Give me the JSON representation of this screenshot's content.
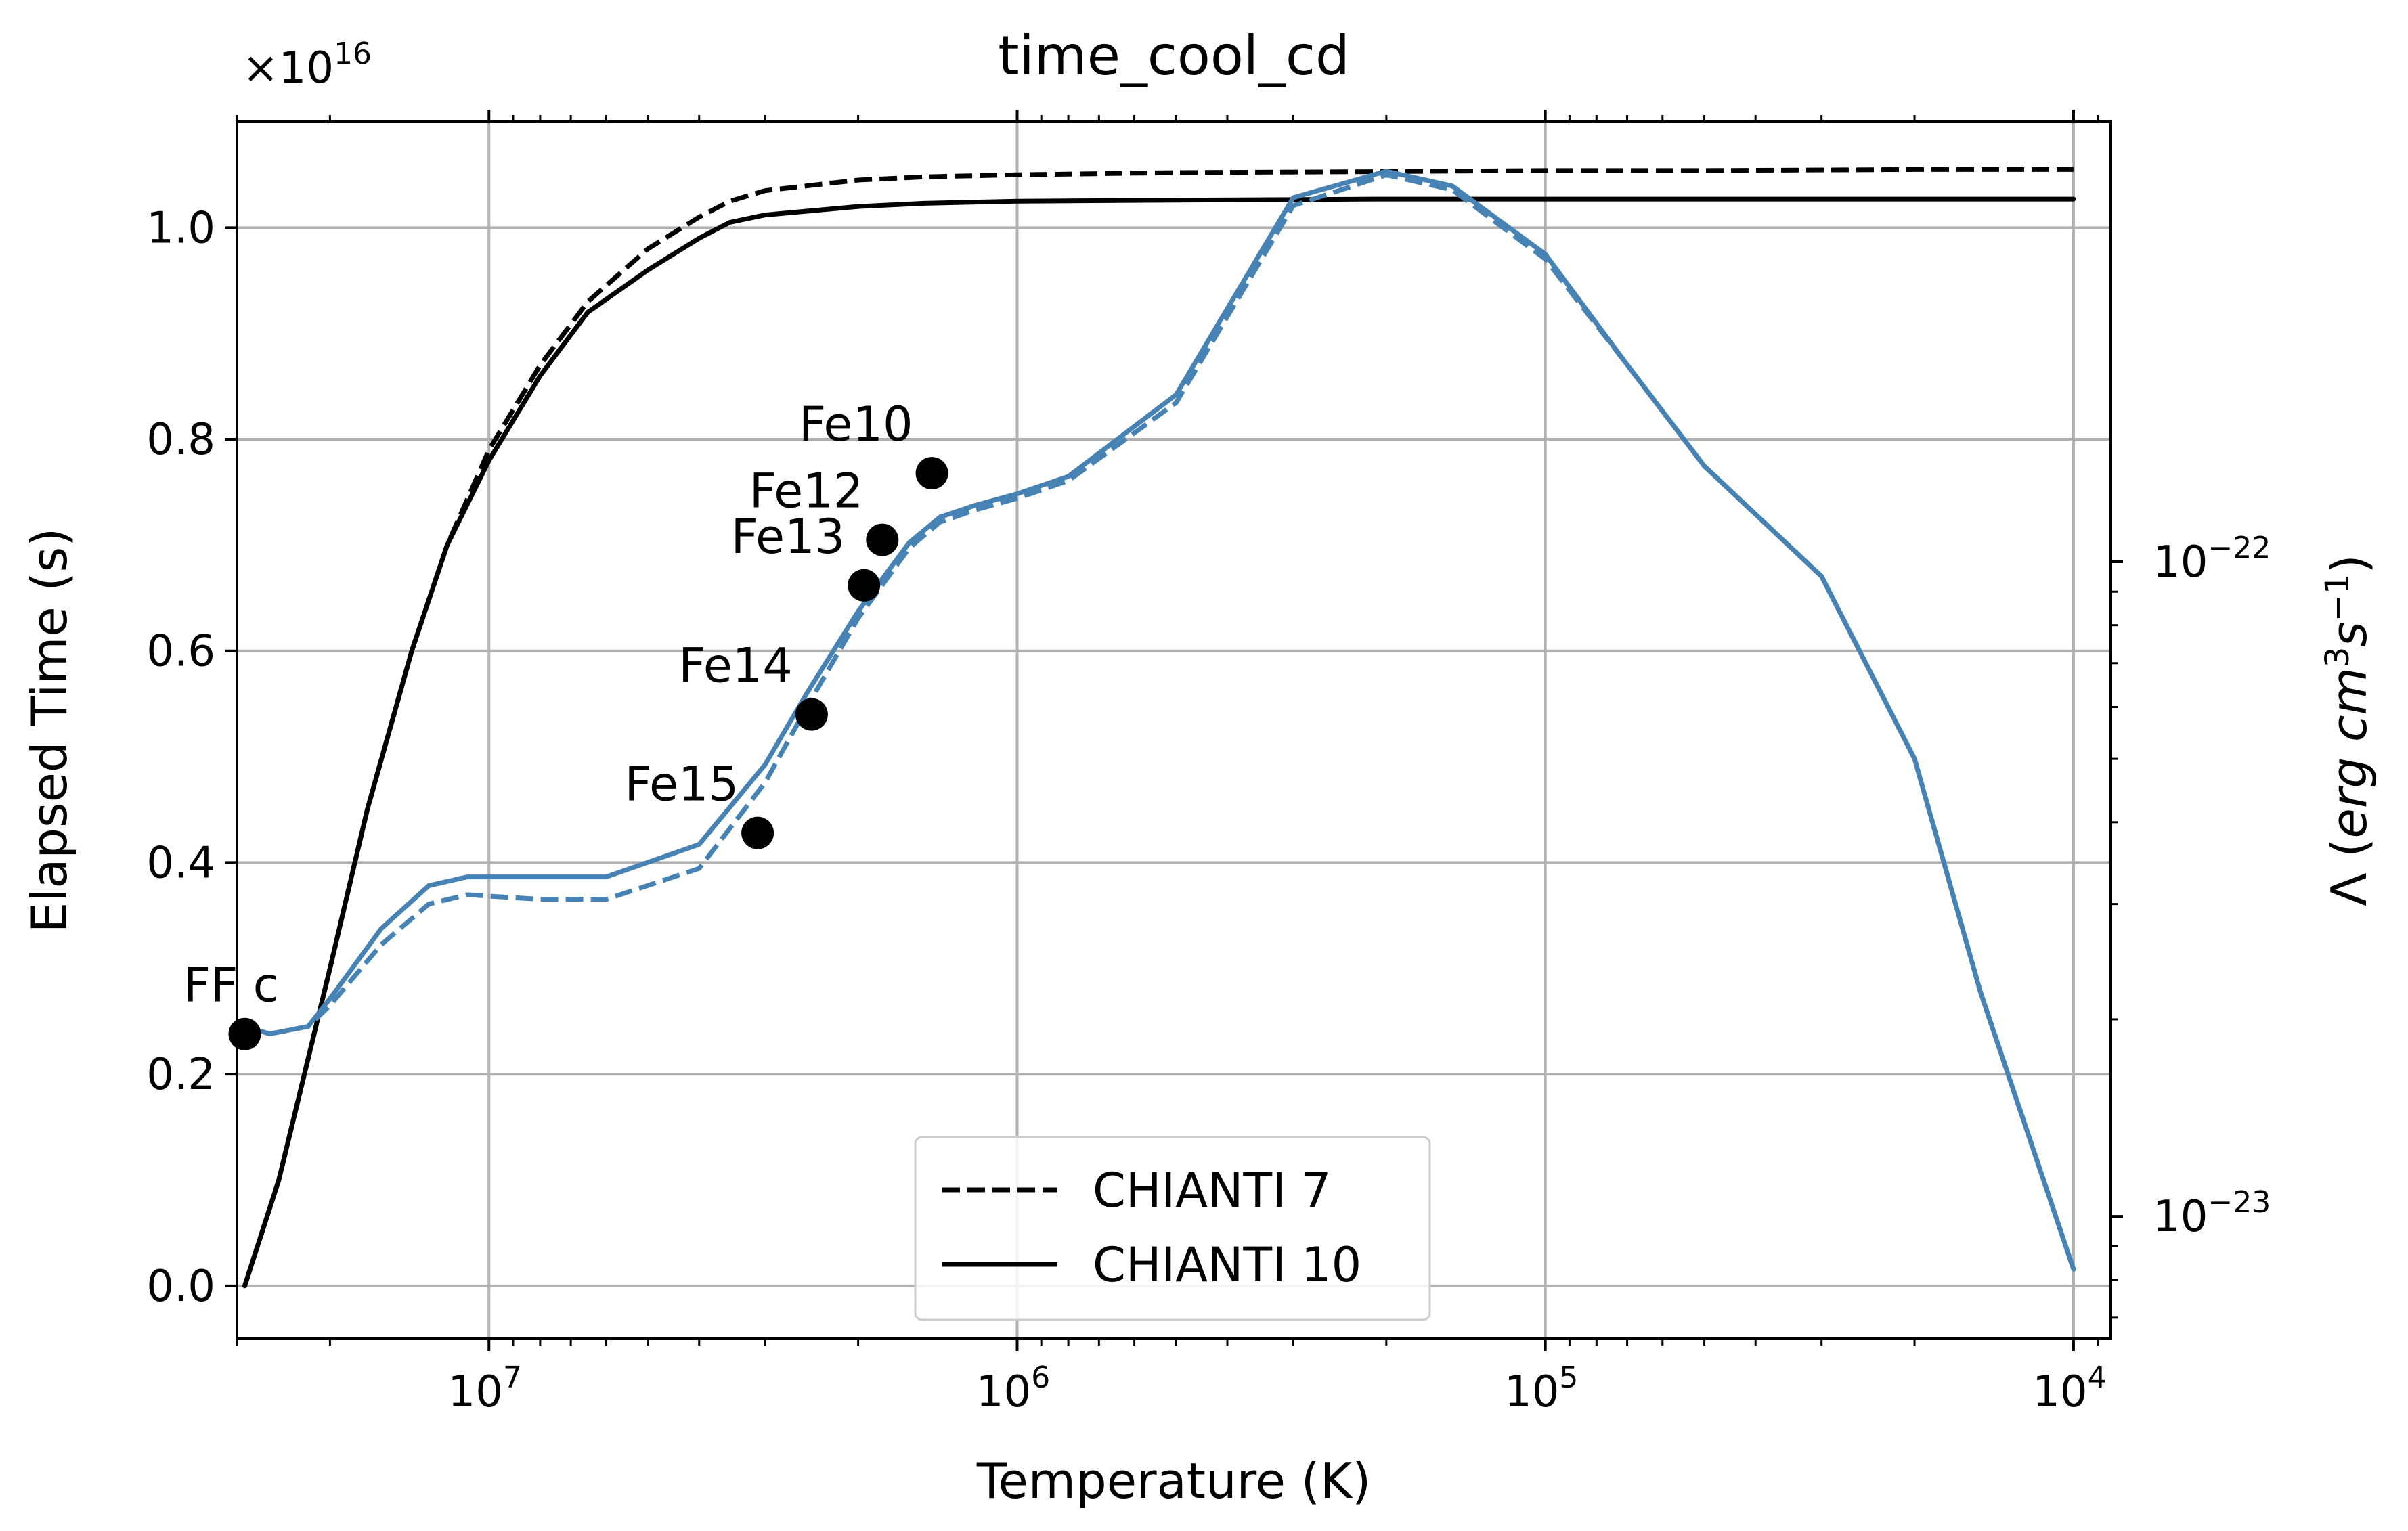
{
  "chart_data": {
    "type": "line",
    "title": "time_cool_cd",
    "xlabel": "Temperature (K)",
    "ylabel": "Elapsed Time (s)",
    "y2label": "Λ (erg cm³s⁻¹)",
    "y2label_parts": {
      "lambda": "Λ (",
      "erg": "erg",
      "cm": "cm",
      "cm_exp": "3",
      "s": "s",
      "s_exp": "−1",
      "close": ")"
    },
    "x_scale": "log",
    "x_reversed": true,
    "xlim": [
      30000000.0,
      8500.0
    ],
    "ylim": [
      -0.05,
      1.1
    ],
    "y_offset_text": {
      "base": "×10",
      "exp": "16"
    },
    "y2_scale": "log",
    "y2lim": [
      6.5e-24,
      4.7e-22
    ],
    "grid": true,
    "xticks": [
      {
        "value": 10000000.0,
        "base": "10",
        "exp": "7"
      },
      {
        "value": 1000000.0,
        "base": "10",
        "exp": "6"
      },
      {
        "value": 100000.0,
        "base": "10",
        "exp": "5"
      },
      {
        "value": 10000.0,
        "base": "10",
        "exp": "4"
      }
    ],
    "yticks": [
      {
        "value": 0.0,
        "label": "0.0"
      },
      {
        "value": 0.2,
        "label": "0.2"
      },
      {
        "value": 0.4,
        "label": "0.4"
      },
      {
        "value": 0.6,
        "label": "0.6"
      },
      {
        "value": 0.8,
        "label": "0.8"
      },
      {
        "value": 1.0,
        "label": "1.0"
      }
    ],
    "y2ticks": [
      {
        "value": 1e-22,
        "base": "10",
        "exp": "−22"
      },
      {
        "value": 1e-23,
        "base": "10",
        "exp": "−23"
      }
    ],
    "colors": {
      "elapsed": "#000000",
      "lambda": "#4682b4",
      "grid": "#b0b0b0"
    },
    "series": [
      {
        "name": "CHIANTI 7",
        "axis": "left",
        "style": "dashed",
        "color": "#000000",
        "x": [
          29000000.0,
          25000000.0,
          20000000.0,
          17000000.0,
          14000000.0,
          12000000.0,
          10000000.0,
          8000000.0,
          6500000.0,
          5000000.0,
          4000000.0,
          3500000.0,
          3000000.0,
          2000000.0,
          1500000.0,
          1000000.0,
          500000.0,
          200000.0,
          100000.0,
          50000.0,
          20000.0,
          10000.0
        ],
        "values": [
          0.0,
          0.1,
          0.3,
          0.45,
          0.6,
          0.7,
          0.79,
          0.87,
          0.93,
          0.98,
          1.01,
          1.025,
          1.035,
          1.045,
          1.048,
          1.05,
          1.052,
          1.053,
          1.054,
          1.054,
          1.055,
          1.055
        ]
      },
      {
        "name": "CHIANTI 10",
        "axis": "left",
        "style": "solid",
        "color": "#000000",
        "x": [
          29000000.0,
          25000000.0,
          20000000.0,
          17000000.0,
          14000000.0,
          12000000.0,
          10000000.0,
          8000000.0,
          6500000.0,
          5000000.0,
          4000000.0,
          3500000.0,
          3000000.0,
          2000000.0,
          1500000.0,
          1000000.0,
          500000.0,
          200000.0,
          100000.0,
          50000.0,
          20000.0,
          10000.0
        ],
        "values": [
          0.0,
          0.1,
          0.3,
          0.45,
          0.6,
          0.7,
          0.78,
          0.86,
          0.92,
          0.96,
          0.99,
          1.005,
          1.012,
          1.02,
          1.023,
          1.025,
          1.026,
          1.027,
          1.027,
          1.027,
          1.027,
          1.027
        ]
      },
      {
        "name": "Lambda CHIANTI 7",
        "axis": "right",
        "style": "dashed",
        "color": "#4682b4",
        "x": [
          29000000.0,
          26000000.0,
          22000000.0,
          20000000.0,
          16000000.0,
          13000000.0,
          11000000.0,
          8000000.0,
          6000000.0,
          4000000.0,
          3000000.0,
          2500000.0,
          2000000.0,
          1600000.0,
          1400000.0,
          1200000.0,
          1000000.0,
          800000.0,
          500000.0,
          300000.0,
          200000.0,
          150000.0,
          100000.0,
          70000.0,
          50000.0,
          30000.0,
          20000.0,
          15000.0,
          10000.0
        ],
        "values": [
          1.95e-23,
          1.9e-23,
          1.95e-23,
          2.1e-23,
          2.6e-23,
          3e-23,
          3.1e-23,
          3.05e-23,
          3.05e-23,
          3.4e-23,
          4.6e-23,
          6e-23,
          8.2e-23,
          1.05e-22,
          1.15e-22,
          1.2e-22,
          1.25e-22,
          1.33e-22,
          1.75e-22,
          3.5e-22,
          3.9e-22,
          3.7e-22,
          2.9e-22,
          2e-22,
          1.4e-22,
          9.5e-23,
          5e-23,
          2.2e-23,
          8.3e-24
        ]
      },
      {
        "name": "Lambda CHIANTI 10",
        "axis": "right",
        "style": "solid",
        "color": "#4682b4",
        "x": [
          29000000.0,
          26000000.0,
          22000000.0,
          20000000.0,
          16000000.0,
          13000000.0,
          11000000.0,
          8000000.0,
          6000000.0,
          4000000.0,
          3000000.0,
          2500000.0,
          2000000.0,
          1600000.0,
          1400000.0,
          1200000.0,
          1000000.0,
          800000.0,
          500000.0,
          300000.0,
          200000.0,
          150000.0,
          100000.0,
          70000.0,
          50000.0,
          30000.0,
          20000.0,
          15000.0,
          10000.0
        ],
        "values": [
          1.95e-23,
          1.9e-23,
          1.95e-23,
          2.15e-23,
          2.75e-23,
          3.2e-23,
          3.3e-23,
          3.3e-23,
          3.3e-23,
          3.7e-23,
          4.9e-23,
          6.3e-23,
          8.4e-23,
          1.07e-22,
          1.17e-22,
          1.22e-22,
          1.27e-22,
          1.35e-22,
          1.8e-22,
          3.6e-22,
          3.95e-22,
          3.75e-22,
          2.95e-22,
          2e-22,
          1.4e-22,
          9.5e-23,
          5e-23,
          2.2e-23,
          8.3e-24
        ]
      }
    ],
    "annotations": [
      {
        "label": "FF c",
        "x": 29000000.0,
        "y": 0.238
      },
      {
        "label": "Fe15",
        "x": 3100000.0,
        "y": 0.428
      },
      {
        "label": "Fe14",
        "x": 2450000.0,
        "y": 0.54
      },
      {
        "label": "Fe13",
        "x": 1950000.0,
        "y": 0.662
      },
      {
        "label": "Fe12",
        "x": 1800000.0,
        "y": 0.705
      },
      {
        "label": "Fe10",
        "x": 1450000.0,
        "y": 0.768
      }
    ],
    "legend": {
      "placement": "lower center",
      "entries": [
        {
          "label": "CHIANTI 7",
          "style": "dashed"
        },
        {
          "label": "CHIANTI 10",
          "style": "solid"
        }
      ]
    }
  }
}
